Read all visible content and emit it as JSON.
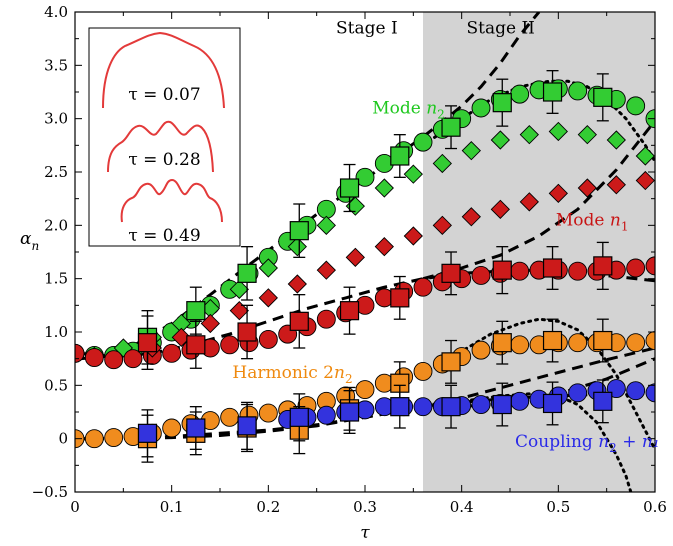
{
  "chart_data": {
    "type": "scatter",
    "xlabel": "τ",
    "ylabel": "α",
    "ylabel_sub": "n",
    "xlim": [
      0,
      0.6
    ],
    "ylim": [
      -0.5,
      4.0
    ],
    "xticks": [
      0,
      0.1,
      0.2,
      0.3,
      0.4,
      0.5,
      0.6
    ],
    "xtick_labels": [
      "0",
      "0.1",
      "0.2",
      "0.3",
      "0.4",
      "0.5",
      "0.6"
    ],
    "yticks": [
      -0.5,
      0,
      0.5,
      1.0,
      1.5,
      2.0,
      2.5,
      3.0,
      3.5,
      4.0
    ],
    "ytick_labels": [
      "−0.5",
      "0",
      "0.5",
      "1.0",
      "1.5",
      "2.0",
      "2.5",
      "3.0",
      "3.5",
      "4.0"
    ],
    "grid": false,
    "stage_shade": {
      "x_start": 0.36,
      "x_end": 0.6,
      "color": "#d3d3d3"
    },
    "stages": [
      {
        "label": "Stage I",
        "x": 0.27,
        "y": 3.8
      },
      {
        "label": "Stage II",
        "x": 0.405,
        "y": 3.8
      }
    ],
    "annotations": [
      {
        "main": "Mode ",
        "sub_var": "n",
        "sub": "2",
        "extra": "",
        "x": 0.345,
        "y": 3.05,
        "color": "#1ec81e"
      },
      {
        "main": "Mode ",
        "sub_var": "n",
        "sub": "1",
        "extra": "",
        "x": 0.535,
        "y": 2.0,
        "color": "#c81414"
      },
      {
        "main": "Harmonic 2",
        "sub_var": "n",
        "sub": "2",
        "extra": "",
        "x": 0.225,
        "y": 0.57,
        "color": "#ef8a10"
      },
      {
        "main": "Coupling  ",
        "sub_var": "n",
        "sub": "2",
        "extra": " + n₁",
        "x": 0.53,
        "y": -0.08,
        "color": "#2a2ae8"
      }
    ],
    "inset": {
      "shapes": [
        {
          "label": "τ = 0.07",
          "kind": "single"
        },
        {
          "label": "τ = 0.28",
          "kind": "double"
        },
        {
          "label": "τ = 0.49",
          "kind": "triple"
        }
      ]
    },
    "series": [
      {
        "marker": "circle",
        "color": "#33cc33",
        "x": [
          0.0,
          0.02,
          0.04,
          0.06,
          0.08,
          0.1,
          0.12,
          0.14,
          0.16,
          0.18,
          0.2,
          0.22,
          0.24,
          0.26,
          0.28,
          0.3,
          0.32,
          0.34,
          0.36,
          0.38,
          0.4,
          0.42,
          0.44,
          0.46,
          0.48,
          0.5,
          0.52,
          0.54,
          0.56,
          0.58,
          0.6
        ],
        "y": [
          0.8,
          0.78,
          0.78,
          0.82,
          0.9,
          1.0,
          1.12,
          1.25,
          1.4,
          1.55,
          1.7,
          1.85,
          2.0,
          2.15,
          2.3,
          2.45,
          2.58,
          2.7,
          2.78,
          2.9,
          3.0,
          3.1,
          3.18,
          3.23,
          3.27,
          3.28,
          3.26,
          3.22,
          3.18,
          3.12,
          3.0
        ]
      },
      {
        "marker": "diamond",
        "color": "#33cc33",
        "x": [
          0.02,
          0.05,
          0.08,
          0.11,
          0.14,
          0.17,
          0.2,
          0.23,
          0.26,
          0.29,
          0.32,
          0.35,
          0.38,
          0.41,
          0.44,
          0.47,
          0.5,
          0.53,
          0.56,
          0.59
        ],
        "y": [
          0.77,
          0.85,
          0.95,
          1.08,
          1.22,
          1.4,
          1.6,
          1.8,
          2.0,
          2.18,
          2.35,
          2.48,
          2.58,
          2.7,
          2.8,
          2.85,
          2.88,
          2.85,
          2.8,
          2.65
        ]
      },
      {
        "marker": "circle",
        "color": "#cc1a1a",
        "x": [
          0.0,
          0.02,
          0.04,
          0.06,
          0.08,
          0.1,
          0.12,
          0.14,
          0.16,
          0.18,
          0.2,
          0.22,
          0.24,
          0.26,
          0.28,
          0.3,
          0.32,
          0.34,
          0.36,
          0.38,
          0.4,
          0.42,
          0.44,
          0.46,
          0.48,
          0.5,
          0.52,
          0.54,
          0.56,
          0.58,
          0.6
        ],
        "y": [
          0.8,
          0.76,
          0.74,
          0.75,
          0.78,
          0.8,
          0.83,
          0.85,
          0.88,
          0.9,
          0.93,
          0.98,
          1.05,
          1.12,
          1.18,
          1.25,
          1.32,
          1.38,
          1.42,
          1.47,
          1.5,
          1.53,
          1.55,
          1.57,
          1.58,
          1.58,
          1.57,
          1.57,
          1.58,
          1.6,
          1.62
        ]
      },
      {
        "marker": "diamond",
        "color": "#cc1a1a",
        "x": [
          0.08,
          0.11,
          0.14,
          0.17,
          0.2,
          0.23,
          0.26,
          0.29,
          0.32,
          0.35,
          0.38,
          0.41,
          0.44,
          0.47,
          0.5,
          0.53,
          0.56,
          0.59
        ],
        "y": [
          0.85,
          0.95,
          1.08,
          1.2,
          1.32,
          1.45,
          1.58,
          1.7,
          1.8,
          1.9,
          2.0,
          2.08,
          2.15,
          2.22,
          2.3,
          2.35,
          2.38,
          2.42
        ]
      },
      {
        "marker": "circle",
        "color": "#f08c1e",
        "x": [
          0.0,
          0.02,
          0.04,
          0.06,
          0.08,
          0.1,
          0.12,
          0.14,
          0.16,
          0.18,
          0.2,
          0.22,
          0.24,
          0.26,
          0.28,
          0.3,
          0.32,
          0.34,
          0.36,
          0.38,
          0.4,
          0.42,
          0.44,
          0.46,
          0.48,
          0.5,
          0.52,
          0.54,
          0.56,
          0.58,
          0.6
        ],
        "y": [
          0.0,
          0.0,
          0.01,
          0.02,
          0.05,
          0.1,
          0.14,
          0.17,
          0.2,
          0.22,
          0.24,
          0.27,
          0.31,
          0.35,
          0.4,
          0.46,
          0.52,
          0.58,
          0.63,
          0.7,
          0.77,
          0.83,
          0.87,
          0.88,
          0.88,
          0.9,
          0.9,
          0.9,
          0.9,
          0.9,
          0.92
        ]
      },
      {
        "marker": "circle",
        "color": "#3333dd",
        "x": [
          0.22,
          0.24,
          0.26,
          0.28,
          0.3,
          0.32,
          0.34,
          0.36,
          0.38,
          0.4,
          0.42,
          0.44,
          0.46,
          0.48,
          0.5,
          0.52,
          0.54,
          0.56,
          0.58,
          0.6
        ],
        "y": [
          0.18,
          0.2,
          0.22,
          0.25,
          0.27,
          0.3,
          0.3,
          0.3,
          0.3,
          0.31,
          0.32,
          0.33,
          0.35,
          0.37,
          0.4,
          0.43,
          0.45,
          0.47,
          0.45,
          0.43
        ]
      },
      {
        "marker": "square",
        "color": "#33cc33",
        "x": [
          0.075,
          0.125,
          0.178,
          0.232,
          0.284,
          0.336,
          0.389,
          0.442,
          0.494,
          0.546
        ],
        "y": [
          0.95,
          1.2,
          1.55,
          1.95,
          2.35,
          2.65,
          2.92,
          3.15,
          3.25,
          3.2
        ],
        "err": [
          0.25,
          0.22,
          0.25,
          0.25,
          0.22,
          0.2,
          0.2,
          0.22,
          0.2,
          0.22
        ]
      },
      {
        "marker": "square",
        "color": "#cc1a1a",
        "x": [
          0.075,
          0.125,
          0.178,
          0.232,
          0.284,
          0.336,
          0.389,
          0.442,
          0.494,
          0.546
        ],
        "y": [
          0.9,
          0.88,
          1.0,
          1.1,
          1.2,
          1.32,
          1.55,
          1.58,
          1.6,
          1.62
        ],
        "err": [
          0.25,
          0.22,
          0.25,
          0.25,
          0.22,
          0.2,
          0.2,
          0.22,
          0.2,
          0.22
        ]
      },
      {
        "marker": "square",
        "color": "#f08c1e",
        "x": [
          0.075,
          0.125,
          0.178,
          0.232,
          0.284,
          0.336,
          0.389,
          0.442,
          0.494,
          0.546
        ],
        "y": [
          0.0,
          0.05,
          0.1,
          0.08,
          0.28,
          0.52,
          0.72,
          0.9,
          0.92,
          0.92
        ],
        "err": [
          0.22,
          0.2,
          0.22,
          0.22,
          0.2,
          0.2,
          0.2,
          0.2,
          0.2,
          0.2
        ]
      },
      {
        "marker": "square",
        "color": "#3333dd",
        "x": [
          0.075,
          0.125,
          0.178,
          0.232,
          0.284,
          0.336,
          0.389,
          0.442,
          0.494,
          0.546
        ],
        "y": [
          0.05,
          0.1,
          0.12,
          0.2,
          0.25,
          0.3,
          0.3,
          0.32,
          0.33,
          0.35
        ],
        "err": [
          0.22,
          0.2,
          0.22,
          0.22,
          0.2,
          0.2,
          0.2,
          0.2,
          0.2,
          0.2
        ]
      }
    ],
    "curves": [
      {
        "style": "dashed",
        "x": [
          0.005,
          0.03,
          0.06,
          0.1,
          0.14,
          0.18,
          0.22,
          0.26,
          0.3,
          0.34,
          0.36,
          0.38,
          0.4,
          0.42,
          0.44,
          0.46,
          0.48
        ],
        "y": [
          0.75,
          0.77,
          0.87,
          1.08,
          1.35,
          1.63,
          1.9,
          2.17,
          2.43,
          2.7,
          2.83,
          2.97,
          3.12,
          3.3,
          3.52,
          3.78,
          4.0
        ]
      },
      {
        "style": "dashed",
        "x": [
          0.005,
          0.04,
          0.08,
          0.12,
          0.16,
          0.2,
          0.24,
          0.28,
          0.32,
          0.36,
          0.4,
          0.44,
          0.48,
          0.52,
          0.56,
          0.6
        ],
        "y": [
          0.8,
          0.77,
          0.8,
          0.88,
          0.98,
          1.1,
          1.22,
          1.32,
          1.42,
          1.5,
          1.55,
          1.57,
          1.58,
          1.55,
          1.52,
          1.48
        ]
      },
      {
        "style": "dashed",
        "x": [
          0.36,
          0.4,
          0.44,
          0.48,
          0.52,
          0.56,
          0.6
        ],
        "y": [
          1.5,
          1.6,
          1.72,
          1.9,
          2.15,
          2.52,
          2.98
        ]
      },
      {
        "style": "dashed",
        "x": [
          0.0,
          0.05,
          0.1,
          0.15,
          0.2,
          0.25,
          0.3,
          0.35,
          0.4,
          0.45,
          0.5,
          0.55,
          0.6
        ],
        "y": [
          0.0,
          0.0,
          0.02,
          0.05,
          0.08,
          0.13,
          0.2,
          0.28,
          0.38,
          0.5,
          0.62,
          0.74,
          0.85
        ]
      },
      {
        "style": "dashed",
        "x": [
          0.0,
          0.05,
          0.1,
          0.15,
          0.2,
          0.25,
          0.3,
          0.35,
          0.4,
          0.45,
          0.5,
          0.55,
          0.6
        ],
        "y": [
          0.0,
          0.0,
          0.01,
          0.03,
          0.07,
          0.12,
          0.2,
          0.28,
          0.34,
          0.38,
          0.4,
          0.42,
          0.43
        ]
      },
      {
        "style": "dashed",
        "x": [
          0.4,
          0.45,
          0.5,
          0.55,
          0.6
        ],
        "y": [
          0.3,
          0.34,
          0.42,
          0.56,
          0.75
        ]
      },
      {
        "style": "dotted",
        "x": [
          0.36,
          0.4,
          0.43,
          0.46,
          0.49,
          0.51,
          0.53,
          0.55,
          0.57,
          0.59,
          0.6
        ],
        "y": [
          2.75,
          3.0,
          3.18,
          3.3,
          3.35,
          3.35,
          3.3,
          3.18,
          3.0,
          2.75,
          2.6
        ]
      },
      {
        "style": "dotted",
        "x": [
          0.36,
          0.4,
          0.43,
          0.46,
          0.48,
          0.5,
          0.52,
          0.54,
          0.56,
          0.58,
          0.6
        ],
        "y": [
          0.6,
          0.82,
          0.98,
          1.08,
          1.12,
          1.1,
          1.02,
          0.85,
          0.6,
          0.25,
          -0.1
        ]
      },
      {
        "style": "dotted",
        "x": [
          0.36,
          0.4,
          0.44,
          0.47,
          0.5,
          0.52,
          0.54,
          0.55,
          0.56,
          0.57,
          0.575
        ],
        "y": [
          0.3,
          0.35,
          0.4,
          0.42,
          0.4,
          0.32,
          0.15,
          0.0,
          -0.15,
          -0.35,
          -0.5
        ]
      }
    ]
  }
}
